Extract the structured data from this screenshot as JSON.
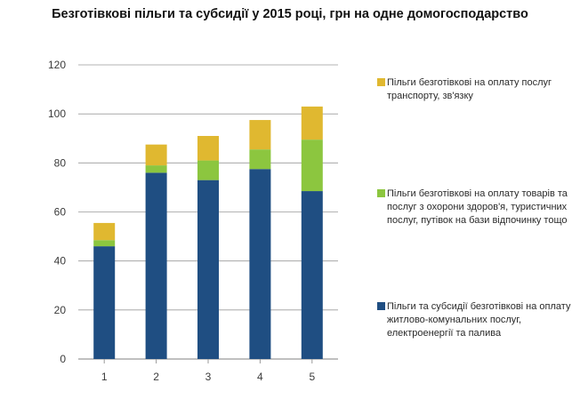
{
  "title": "Безготівкові пільги та субсидії у 2015 році, грн на одне домогосподарство",
  "colors": {
    "blue": "#1f4e82",
    "green": "#8cc63f",
    "yellow": "#e0b830",
    "grid": "#9a9a9a"
  },
  "chart_data": {
    "type": "bar",
    "stacked": true,
    "title": "Безготівкові пільги та субсидії у 2015 році, грн на одне домогосподарство",
    "xlabel": "",
    "ylabel": "",
    "categories": [
      "1",
      "2",
      "3",
      "4",
      "5"
    ],
    "ylim": [
      0,
      120
    ],
    "yticks": [
      0,
      20,
      40,
      60,
      80,
      100,
      120
    ],
    "grid": true,
    "legend_position": "right",
    "series": [
      {
        "name": "Пільги та субсидії безготівкові на оплату житлово-комунальних послуг, електроенергії та палива",
        "color": "#1f4e82",
        "values": [
          46,
          76,
          73,
          77.5,
          68.5
        ]
      },
      {
        "name": "Пільги безготівкові на оплату товарів та послуг з охорони здоров'я, туристичних послуг, путівок на бази відпочинку тощо",
        "color": "#8cc63f",
        "values": [
          2.5,
          3,
          8,
          8,
          21
        ]
      },
      {
        "name": "Пільги безготівкові на оплату послуг транспорту, зв'язку",
        "color": "#e0b830",
        "values": [
          7,
          8.5,
          10,
          12,
          13.5
        ]
      }
    ]
  },
  "legend": [
    {
      "color": "#e0b830",
      "label": "Пільги безготівкові на оплату послуг транспорту, зв'язку"
    },
    {
      "color": "#8cc63f",
      "label": "Пільги безготівкові на оплату товарів та послуг з охорони здоров'я, туристичних послуг, путівок на бази відпочинку тощо"
    },
    {
      "color": "#1f4e82",
      "label": "Пільги та субсидії безготівкові на оплату житлово-комунальних послуг, електроенергії та палива"
    }
  ]
}
